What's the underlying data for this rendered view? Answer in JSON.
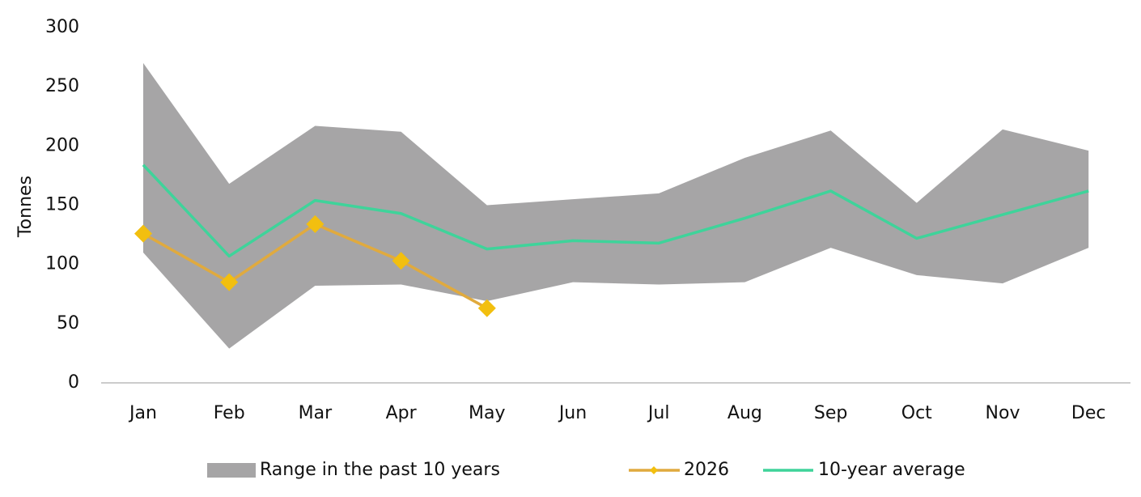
{
  "chart_data": {
    "type": "line",
    "y_label": "Tonnes",
    "categories": [
      "Jan",
      "Feb",
      "Mar",
      "Apr",
      "May",
      "Jun",
      "Jul",
      "Aug",
      "Sep",
      "Oct",
      "Nov",
      "Dec"
    ],
    "range": {
      "name": "Range in the past 10 years",
      "color": "#a6a5a6",
      "low": [
        110,
        29,
        82,
        83,
        69,
        85,
        83,
        85,
        114,
        91,
        84,
        114
      ],
      "high": [
        270,
        168,
        217,
        212,
        150,
        155,
        160,
        190,
        213,
        152,
        214,
        196
      ]
    },
    "series": [
      {
        "name": "2026",
        "color": "#e0aa3e",
        "marker_color": "#f2bf0f",
        "values": [
          126,
          85,
          134,
          103,
          63,
          null,
          null,
          null,
          null,
          null,
          null,
          null
        ]
      },
      {
        "name": "10-year average",
        "color": "#3fd39a",
        "values": [
          184,
          107,
          154,
          143,
          113,
          120,
          118,
          139,
          162,
          122,
          142,
          162
        ]
      }
    ],
    "ylim": [
      0,
      300
    ],
    "yticks": [
      0,
      50,
      100,
      150,
      200,
      250,
      300
    ]
  }
}
